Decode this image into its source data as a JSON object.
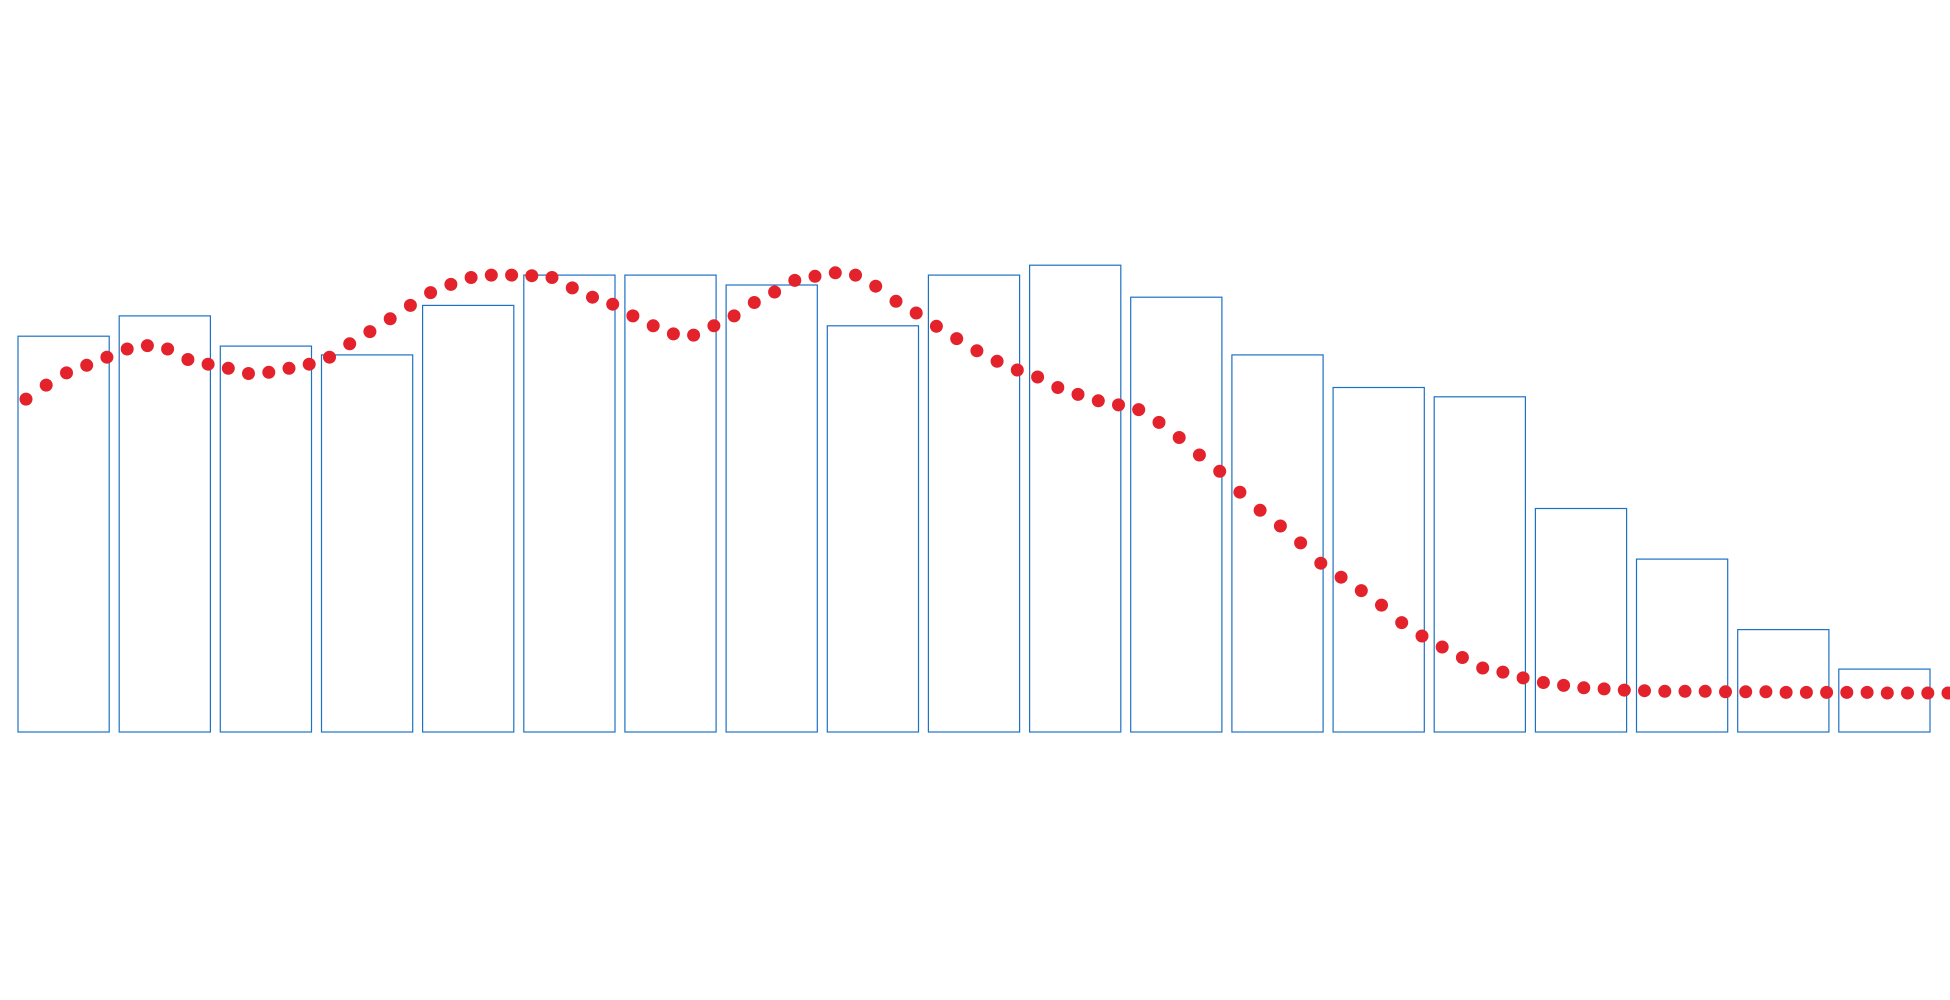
{
  "chart_data": {
    "type": "bar",
    "title": "",
    "xlabel": "",
    "ylabel": "",
    "ylim": [
      0,
      100
    ],
    "grid": false,
    "legend": "none",
    "colors": {
      "bars_stroke": "#1e72c4",
      "bars_fill": "#ffffff",
      "points": "#e3222c",
      "background": "#ffffff"
    },
    "series": [
      {
        "type": "bar",
        "values": [
          68.0,
          71.5,
          66.3,
          64.8,
          73.3,
          78.5,
          78.5,
          76.8,
          69.8,
          78.5,
          80.2,
          74.7,
          64.8,
          59.2,
          57.6,
          38.4,
          29.7,
          17.6,
          10.8
        ]
      },
      {
        "type": "scatter",
        "x": [
          0.0,
          0.2,
          0.4,
          0.6,
          0.8,
          1.0,
          1.2,
          1.4,
          1.6,
          1.8,
          2.0,
          2.2,
          2.4,
          2.6,
          2.8,
          3.0,
          3.2,
          3.4,
          3.6,
          3.8,
          4.0,
          4.2,
          4.4,
          4.6,
          4.8,
          5.0,
          5.2,
          5.4,
          5.6,
          5.8,
          6.0,
          6.2,
          6.4,
          6.6,
          6.8,
          7.0,
          7.2,
          7.4,
          7.6,
          7.8,
          8.0,
          8.2,
          8.4,
          8.6,
          8.8,
          9.0,
          9.2,
          9.4,
          9.6,
          9.8,
          10.0,
          10.2,
          10.4,
          10.6,
          10.8,
          11.0,
          11.2,
          11.4,
          11.6,
          11.8,
          12.0,
          12.2,
          12.4,
          12.6,
          12.8,
          13.0,
          13.2,
          13.4,
          13.6,
          13.8,
          14.0,
          14.2,
          14.4,
          14.6,
          14.8,
          15.0,
          15.2,
          15.4,
          15.6,
          15.8,
          16.0,
          16.2,
          16.4,
          16.6,
          16.8,
          17.0,
          17.2,
          17.4,
          17.6,
          17.8,
          18.0,
          18.2,
          18.4,
          18.6,
          18.8,
          19.0
        ],
        "y": [
          57.2,
          59.6,
          61.7,
          63.0,
          64.4,
          65.8,
          66.4,
          65.8,
          64.0,
          63.2,
          62.5,
          61.6,
          61.8,
          62.5,
          63.2,
          64.4,
          66.7,
          68.8,
          71.0,
          73.3,
          75.5,
          76.9,
          78.1,
          78.5,
          78.5,
          78.4,
          78.1,
          76.3,
          74.7,
          73.5,
          71.5,
          69.8,
          68.4,
          68.2,
          69.8,
          71.5,
          73.8,
          75.6,
          77.6,
          78.3,
          78.9,
          78.5,
          76.6,
          74.0,
          72.0,
          69.7,
          67.6,
          65.5,
          63.7,
          62.2,
          61.0,
          59.2,
          58.0,
          56.9,
          56.2,
          55.4,
          53.2,
          50.6,
          47.6,
          44.8,
          41.2,
          38.1,
          35.4,
          32.5,
          29.0,
          26.6,
          24.3,
          21.8,
          18.8,
          16.5,
          14.6,
          12.8,
          11.0,
          10.3,
          9.3,
          8.5,
          8.0,
          7.6,
          7.4,
          7.2,
          7.1,
          7.0,
          7.0,
          7.0,
          6.9,
          6.9,
          6.9,
          6.8,
          6.8,
          6.8,
          6.8,
          6.8,
          6.7,
          6.7,
          6.7,
          6.7
        ]
      }
    ]
  }
}
